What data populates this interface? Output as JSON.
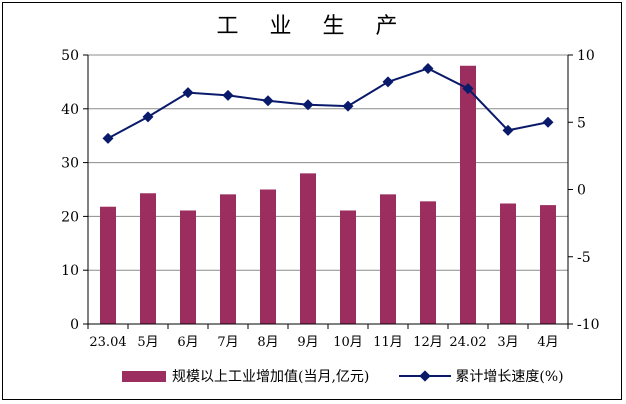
{
  "chart_data": {
    "type": "bar+line",
    "title": "工 业 生 产",
    "categories": [
      "23.04",
      "5月",
      "6月",
      "7月",
      "8月",
      "9月",
      "10月",
      "11月",
      "12月",
      "24.02",
      "3月",
      "4月"
    ],
    "series": [
      {
        "name": "规模以上工业增加值(当月,亿元)",
        "type": "bar",
        "axis": "left",
        "color": "#9b2e5e",
        "values": [
          21.8,
          24.3,
          21.1,
          24.1,
          25.0,
          28.0,
          21.1,
          24.1,
          22.8,
          48.0,
          22.4,
          22.1
        ]
      },
      {
        "name": "累计增长速度(%)",
        "type": "line",
        "axis": "right",
        "color": "#0a1a6b",
        "marker": "diamond",
        "values": [
          3.8,
          5.4,
          7.2,
          7.0,
          6.6,
          6.3,
          6.2,
          8.0,
          9.0,
          7.5,
          4.4,
          5.0
        ]
      }
    ],
    "y_left": {
      "min": 0,
      "max": 50,
      "ticks": [
        0,
        10,
        20,
        30,
        40,
        50
      ]
    },
    "y_right": {
      "min": -10,
      "max": 10,
      "ticks": [
        -10,
        -5,
        0,
        5,
        10
      ]
    },
    "grid": true,
    "legend_position": "bottom"
  }
}
